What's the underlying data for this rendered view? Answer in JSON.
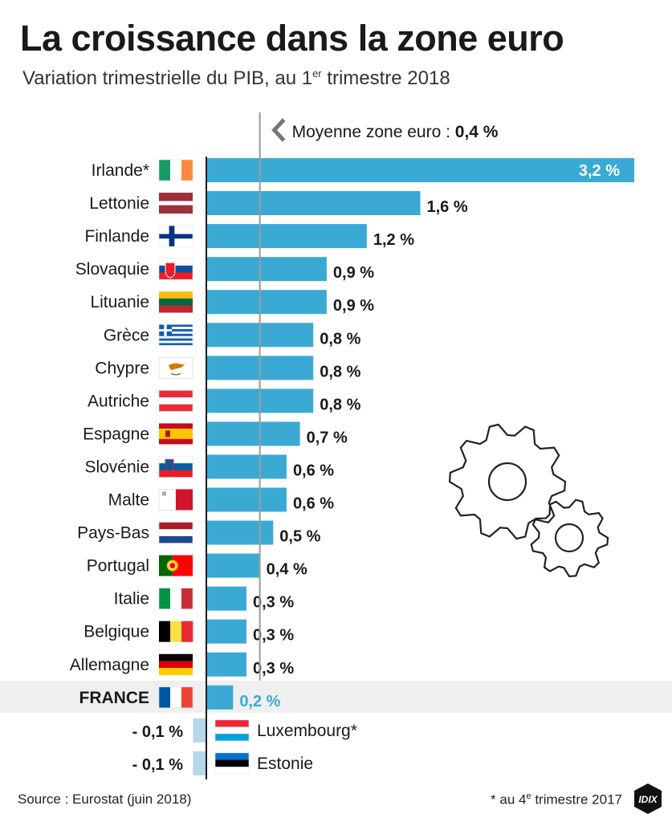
{
  "header": {
    "title": "La croissance dans la zone euro",
    "subtitle_main": "Variation trimestrielle du PIB, au 1",
    "subtitle_sup": "er",
    "subtitle_end": " trimestre 2018"
  },
  "chart_data": {
    "type": "bar",
    "orientation": "horizontal",
    "title": "La croissance dans la zone euro",
    "subtitle": "Variation trimestrielle du PIB, au 1er trimestre 2018",
    "unit": "%",
    "reference_line": {
      "label": "Moyenne zone euro : ",
      "value_label": "0,4 %",
      "value": 0.4
    },
    "categories": [
      "Irlande*",
      "Lettonie",
      "Finlande",
      "Slovaquie",
      "Lituanie",
      "Grèce",
      "Chypre",
      "Autriche",
      "Espagne",
      "Slovénie",
      "Malte",
      "Pays-Bas",
      "Portugal",
      "Italie",
      "Belgique",
      "Allemagne",
      "FRANCE",
      "Luxembourg*",
      "Estonie"
    ],
    "values": [
      3.2,
      1.6,
      1.2,
      0.9,
      0.9,
      0.8,
      0.8,
      0.8,
      0.7,
      0.6,
      0.6,
      0.5,
      0.4,
      0.3,
      0.3,
      0.3,
      0.2,
      -0.1,
      -0.1
    ],
    "value_labels": [
      "3,2 %",
      "1,6 %",
      "1,2 %",
      "0,9 %",
      "0,9 %",
      "0,8 %",
      "0,8 %",
      "0,8 %",
      "0,7 %",
      "0,6 %",
      "0,6 %",
      "0,5 %",
      "0,4 %",
      "0,3 %",
      "0,3 %",
      "0,3 %",
      "0,2 %",
      "- 0,1 %",
      "- 0,1 %"
    ],
    "highlight_category": "FRANCE",
    "colors": {
      "positive": "#3aaad4",
      "negative": "#b5d7e8",
      "highlight_text": "#3aaad4",
      "highlight_bg": "#efefef"
    },
    "flags": [
      "ireland-flag",
      "latvia-flag",
      "finland-flag",
      "slovakia-flag",
      "lithuania-flag",
      "greece-flag",
      "cyprus-flag",
      "austria-flag",
      "spain-flag",
      "slovenia-flag",
      "malta-flag",
      "netherlands-flag",
      "portugal-flag",
      "italy-flag",
      "belgium-flag",
      "germany-flag",
      "france-flag",
      "luxembourg-flag",
      "estonia-flag"
    ],
    "grid": false,
    "legend": "none"
  },
  "footer": {
    "source": "Source : Eurostat (juin 2018)",
    "note_main": "* au 4",
    "note_sup": "e",
    "note_end": " trimestre 2017",
    "logo_text": "IDIX"
  },
  "decoration": {
    "icon": "gears-icon"
  }
}
